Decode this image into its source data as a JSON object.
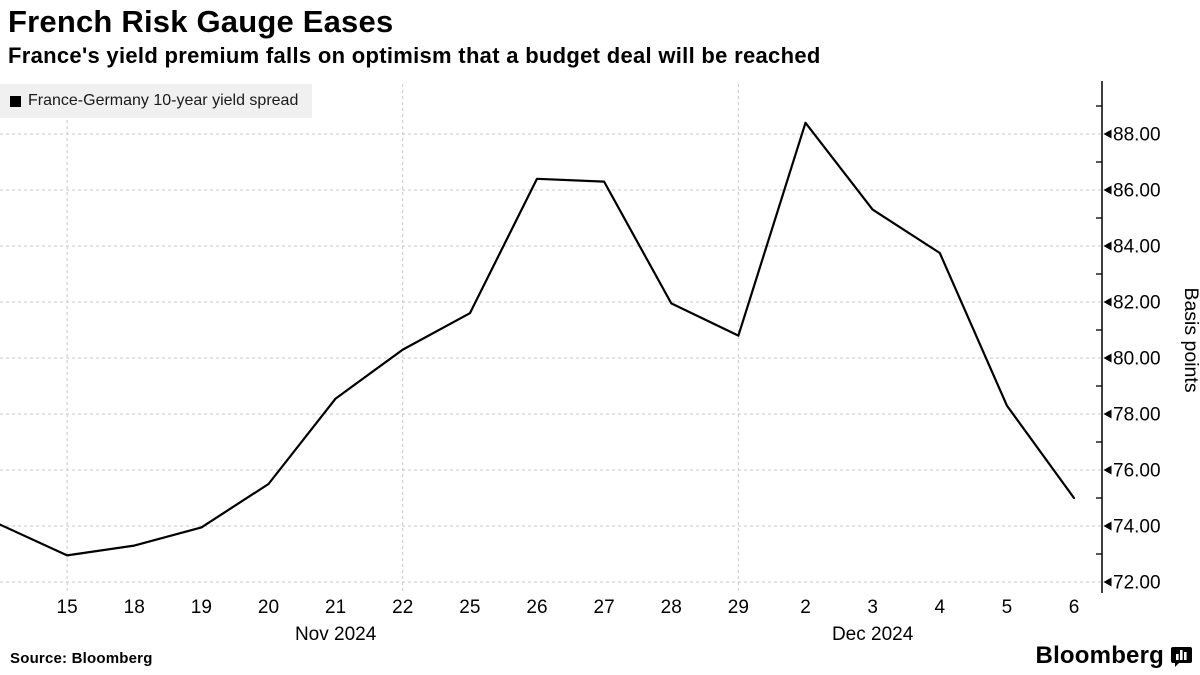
{
  "header": {
    "title": "French Risk Gauge Eases",
    "subtitle": "France's yield premium falls on optimism that a budget deal will be reached"
  },
  "legend": {
    "swatch_color": "#000000",
    "label": "France-Germany 10-year yield spread"
  },
  "footer": {
    "source": "Source: Bloomberg",
    "brand": "Bloomberg"
  },
  "chart_data": {
    "type": "line",
    "title": "French Risk Gauge Eases",
    "subtitle": "France's yield premium falls on optimism that a budget deal will be reached",
    "ylabel": "Basis points",
    "ylim": [
      71.6,
      90.0
    ],
    "grid": "on",
    "legend_position": "top-left",
    "line_color": "#000000",
    "grid_color": "#c9c9c9",
    "x_axis": {
      "labels": [
        "",
        "15",
        "18",
        "19",
        "20",
        "21",
        "22",
        "25",
        "26",
        "27",
        "28",
        "29",
        "2",
        "3",
        "4",
        "5",
        "6"
      ],
      "gridline_labels": [
        "15",
        "22",
        "29"
      ],
      "month_labels": [
        {
          "label": "Nov 2024",
          "under_tick": "21"
        },
        {
          "label": "Dec 2024",
          "under_tick": "3"
        }
      ]
    },
    "y_axis": {
      "tick_values": [
        72,
        74,
        76,
        78,
        80,
        82,
        84,
        86,
        88
      ],
      "tick_labels": [
        "72.00",
        "74.00",
        "76.00",
        "78.00",
        "80.00",
        "82.00",
        "84.00",
        "86.00",
        "88.00"
      ],
      "minor_tick_values": [
        73,
        75,
        77,
        79,
        81,
        83,
        85,
        87,
        89
      ]
    },
    "series": [
      {
        "name": "France-Germany 10-year yield spread",
        "values": [
          74.05,
          72.95,
          73.3,
          73.95,
          75.5,
          78.55,
          80.3,
          81.6,
          86.4,
          86.3,
          81.95,
          80.8,
          88.4,
          85.3,
          83.75,
          78.3,
          75.0
        ]
      }
    ]
  }
}
